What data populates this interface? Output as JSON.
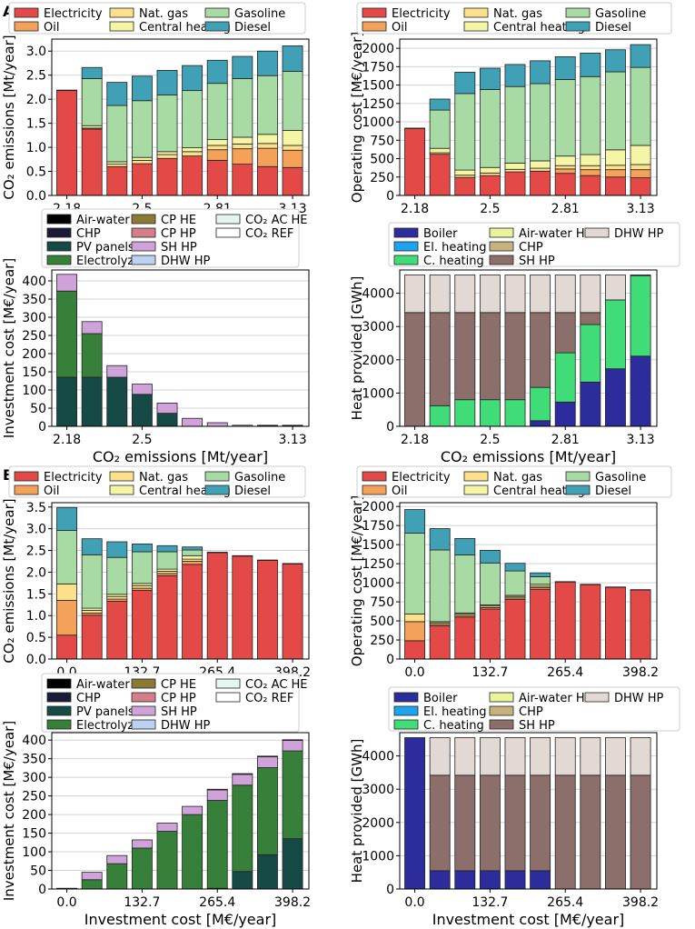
{
  "panel_labels": [
    "A",
    "B"
  ],
  "legends": {
    "emission": [
      "Electricity",
      "Oil",
      "Nat. gas",
      "Central heating",
      "Gasoline",
      "Diesel"
    ],
    "investment": [
      "Air-water HP",
      "CHP",
      "PV panels",
      "Electrolyzer",
      "CP HE",
      "CP HP",
      "SH HP",
      "DHW HP",
      "CO₂ AC HE",
      "CO₂ REF"
    ],
    "heat": [
      "Boiler",
      "El. heating",
      "C. heating",
      "Air-water HP",
      "CHP",
      "SH HP",
      "DHW HP"
    ]
  },
  "colors": {
    "Electricity": "#e34a47",
    "Oil": "#f4a259",
    "Nat. gas": "#fde08b",
    "Central heating": "#f5f5a6",
    "Gasoline": "#a7dba3",
    "Diesel": "#3fa0b6",
    "Air-water HP": "#000000",
    "CHP": "#1b1b36",
    "PV panels": "#164a46",
    "Electrolyzer": "#36803a",
    "CP HE": "#8b7a35",
    "CP HP": "#d47e8a",
    "SH HP": "#cfa3da",
    "DHW HP": "#bdd2f2",
    "CO₂ AC HE": "#e5f5ef",
    "CO₂ REF": "#ffffff",
    "Boiler": "#2c2c9c",
    "El. heating": "#1ea4ee",
    "C. heating": "#3fdc78",
    "HP Air-water HP": "#eaf59b",
    "HP CHP": "#c7b17e",
    "HP SH HP": "#8c6f6a",
    "HP DHW HP": "#e2d8d4"
  },
  "chart_data": [
    {
      "id": "A-emissions",
      "type": "bar",
      "stacked": true,
      "ylabel": "CO₂ emissions [Mt/year]",
      "xlabel": "",
      "ylim": [
        0,
        3.25
      ],
      "yticks": [
        "0.0",
        "0.5",
        "1.0",
        "1.5",
        "2.0",
        "2.5",
        "3.0"
      ],
      "ytick_values": [
        0,
        0.5,
        1,
        1.5,
        2,
        2.5,
        3
      ],
      "xtick_labels": [
        "2.18",
        "2.5",
        "2.81",
        "3.13"
      ],
      "xtick_positions": [
        0,
        3,
        6,
        9
      ],
      "series": [
        {
          "name": "Electricity",
          "values": [
            2.18,
            1.38,
            0.6,
            0.66,
            0.77,
            0.82,
            0.73,
            0.65,
            0.6,
            0.58
          ]
        },
        {
          "name": "Oil",
          "values": [
            0,
            0,
            0,
            0,
            0,
            0,
            0.22,
            0.32,
            0.38,
            0.36
          ]
        },
        {
          "name": "Nat. gas",
          "values": [
            0.01,
            0.02,
            0.05,
            0.07,
            0.08,
            0.09,
            0.09,
            0.1,
            0.1,
            0.1
          ]
        },
        {
          "name": "Central heating",
          "values": [
            0,
            0.05,
            0.05,
            0.06,
            0.06,
            0.08,
            0.12,
            0.14,
            0.19,
            0.31
          ]
        },
        {
          "name": "Gasoline",
          "values": [
            0,
            0.98,
            1.17,
            1.18,
            1.18,
            1.19,
            1.17,
            1.22,
            1.22,
            1.23
          ]
        },
        {
          "name": "Diesel",
          "values": [
            0,
            0.23,
            0.48,
            0.51,
            0.51,
            0.52,
            0.48,
            0.46,
            0.51,
            0.53
          ]
        }
      ]
    },
    {
      "id": "A-operating",
      "type": "bar",
      "stacked": true,
      "ylabel": "Operating cost [M€/year]",
      "xlabel": "",
      "ylim": [
        0,
        2125
      ],
      "yticks": [
        "0",
        "250",
        "500",
        "750",
        "1000",
        "1250",
        "1500",
        "1750",
        "2000"
      ],
      "ytick_values": [
        0,
        250,
        500,
        750,
        1000,
        1250,
        1500,
        1750,
        2000
      ],
      "xtick_labels": [
        "2.18",
        "2.5",
        "2.81",
        "3.13"
      ],
      "xtick_positions": [
        0,
        3,
        6,
        9
      ],
      "series": [
        {
          "name": "Electricity",
          "values": [
            910,
            560,
            245,
            270,
            320,
            330,
            300,
            270,
            250,
            240
          ]
        },
        {
          "name": "Oil",
          "values": [
            0,
            0,
            0,
            0,
            0,
            0,
            60,
            80,
            100,
            110
          ]
        },
        {
          "name": "Nat. gas",
          "values": [
            5,
            20,
            30,
            35,
            35,
            40,
            45,
            55,
            60,
            70
          ]
        },
        {
          "name": "Central heating",
          "values": [
            0,
            60,
            70,
            75,
            85,
            100,
            130,
            150,
            210,
            260
          ]
        },
        {
          "name": "Gasoline",
          "values": [
            0,
            520,
            1040,
            1060,
            1040,
            1050,
            1040,
            1060,
            1060,
            1060
          ]
        },
        {
          "name": "Diesel",
          "values": [
            0,
            150,
            290,
            290,
            300,
            310,
            310,
            320,
            300,
            310
          ]
        }
      ]
    },
    {
      "id": "A-investment",
      "type": "bar",
      "stacked": true,
      "ylabel": "Investment cost [M€/year]",
      "xlabel": "CO₂ emissions [Mt/year]",
      "ylim": [
        0,
        430
      ],
      "yticks": [
        "0",
        "50",
        "100",
        "150",
        "200",
        "250",
        "300",
        "350",
        "400"
      ],
      "ytick_values": [
        0,
        50,
        100,
        150,
        200,
        250,
        300,
        350,
        400
      ],
      "xtick_labels": [
        "2.18",
        "2.5",
        "3.13"
      ],
      "xtick_positions": [
        0,
        3,
        9
      ],
      "series": [
        {
          "name": "PV panels",
          "values": [
            135,
            135,
            135,
            88,
            36,
            0,
            0,
            0,
            0,
            0
          ]
        },
        {
          "name": "Electrolyzer",
          "values": [
            237,
            120,
            0,
            0,
            0,
            0,
            0,
            0,
            0,
            0
          ]
        },
        {
          "name": "SH HP",
          "values": [
            46,
            33,
            32,
            28,
            28,
            22,
            10,
            3,
            2,
            2
          ]
        },
        {
          "name": "CO₂ REF",
          "values": [
            0,
            0,
            0,
            0,
            0,
            0,
            0,
            0,
            1,
            1
          ]
        }
      ]
    },
    {
      "id": "A-heat",
      "type": "bar",
      "stacked": true,
      "ylabel": "Heat provided [GWh]",
      "xlabel": "CO₂ emissions [Mt/year]",
      "ylim": [
        0,
        4700
      ],
      "yticks": [
        "0",
        "1000",
        "2000",
        "3000",
        "4000"
      ],
      "ytick_values": [
        0,
        1000,
        2000,
        3000,
        4000
      ],
      "xtick_labels": [
        "2.18",
        "2.5",
        "2.81",
        "3.13"
      ],
      "xtick_positions": [
        0,
        3,
        6,
        9
      ],
      "series": [
        {
          "name": "Boiler",
          "values": [
            0,
            0,
            0,
            0,
            0,
            170,
            730,
            1330,
            1730,
            2110
          ]
        },
        {
          "name": "C. heating",
          "values": [
            0,
            620,
            800,
            800,
            800,
            1000,
            1480,
            1730,
            2070,
            2420
          ]
        },
        {
          "name": "SH HP",
          "values": [
            3420,
            2800,
            2620,
            2620,
            2620,
            2250,
            1210,
            360,
            0,
            0
          ]
        },
        {
          "name": "DHW HP",
          "values": [
            1130,
            1130,
            1130,
            1130,
            1130,
            1130,
            1130,
            1130,
            750,
            20
          ]
        }
      ]
    },
    {
      "id": "B-emissions",
      "type": "bar",
      "stacked": true,
      "ylabel": "CO₂ emissions [Mt/year]",
      "xlabel": "",
      "ylim": [
        0,
        3.6
      ],
      "yticks": [
        "0.0",
        "0.5",
        "1.0",
        "1.5",
        "2.0",
        "2.5",
        "3.0",
        "3.5"
      ],
      "ytick_values": [
        0,
        0.5,
        1,
        1.5,
        2,
        2.5,
        3,
        3.5
      ],
      "xtick_labels": [
        "0.0",
        "132.7",
        "265.4",
        "398.2"
      ],
      "xtick_positions": [
        0,
        3,
        6,
        9
      ],
      "series": [
        {
          "name": "Electricity",
          "values": [
            0.55,
            1.01,
            1.33,
            1.58,
            1.92,
            2.18,
            2.45,
            2.37,
            2.27,
            2.19
          ]
        },
        {
          "name": "Oil",
          "values": [
            0.8,
            0.05,
            0.05,
            0.05,
            0.05,
            0.07,
            0,
            0,
            0,
            0
          ]
        },
        {
          "name": "Nat. gas",
          "values": [
            0.38,
            0.06,
            0.06,
            0.06,
            0.05,
            0.05,
            0.01,
            0.01,
            0.01,
            0.01
          ]
        },
        {
          "name": "Central heating",
          "values": [
            0,
            0.05,
            0.05,
            0.05,
            0.05,
            0.08,
            0,
            0,
            0,
            0
          ]
        },
        {
          "name": "Gasoline",
          "values": [
            1.23,
            1.23,
            0.85,
            0.73,
            0.4,
            0.13,
            0,
            0,
            0,
            0
          ]
        },
        {
          "name": "Diesel",
          "values": [
            0.53,
            0.37,
            0.36,
            0.18,
            0.14,
            0.07,
            0,
            0,
            0,
            0
          ]
        }
      ]
    },
    {
      "id": "B-operating",
      "type": "bar",
      "stacked": true,
      "ylabel": "Operating cost [M€/year]",
      "xlabel": "",
      "ylim": [
        0,
        2050
      ],
      "yticks": [
        "0",
        "250",
        "500",
        "750",
        "1000",
        "1250",
        "1500",
        "1750",
        "2000"
      ],
      "ytick_values": [
        0,
        250,
        500,
        750,
        1000,
        1250,
        1500,
        1750,
        2000
      ],
      "xtick_labels": [
        "0.0",
        "132.7",
        "265.4",
        "398.2"
      ],
      "xtick_positions": [
        0,
        3,
        6,
        9
      ],
      "series": [
        {
          "name": "Electricity",
          "values": [
            240,
            435,
            550,
            655,
            780,
            915,
            1010,
            975,
            940,
            905
          ]
        },
        {
          "name": "Oil",
          "values": [
            250,
            20,
            20,
            20,
            20,
            20,
            0,
            0,
            0,
            0
          ]
        },
        {
          "name": "Nat. gas",
          "values": [
            100,
            20,
            20,
            20,
            20,
            20,
            5,
            5,
            5,
            5
          ]
        },
        {
          "name": "Central heating",
          "values": [
            0,
            15,
            15,
            15,
            15,
            25,
            0,
            0,
            0,
            0
          ]
        },
        {
          "name": "Gasoline",
          "values": [
            1060,
            940,
            760,
            550,
            320,
            100,
            0,
            0,
            0,
            0
          ]
        },
        {
          "name": "Diesel",
          "values": [
            310,
            280,
            215,
            165,
            100,
            50,
            0,
            0,
            0,
            0
          ]
        }
      ]
    },
    {
      "id": "B-investment",
      "type": "bar",
      "stacked": true,
      "ylabel": "Investment cost [M€/year]",
      "xlabel": "Investment cost [M€/year]",
      "ylim": [
        0,
        420
      ],
      "yticks": [
        "0",
        "50",
        "100",
        "150",
        "200",
        "250",
        "300",
        "350",
        "400"
      ],
      "ytick_values": [
        0,
        50,
        100,
        150,
        200,
        250,
        300,
        350,
        400
      ],
      "xtick_labels": [
        "0.0",
        "132.7",
        "265.4",
        "398.2"
      ],
      "xtick_positions": [
        0,
        3,
        6,
        9
      ],
      "series": [
        {
          "name": "PV panels",
          "values": [
            0,
            0,
            0,
            0,
            0,
            0,
            2,
            47,
            92,
            135
          ]
        },
        {
          "name": "Electrolyzer",
          "values": [
            2,
            25,
            68,
            110,
            155,
            200,
            236,
            232,
            234,
            236
          ]
        },
        {
          "name": "SH HP",
          "values": [
            0,
            20,
            22,
            22,
            22,
            22,
            28,
            29,
            29,
            28
          ]
        },
        {
          "name": "CO₂ REF",
          "values": [
            0,
            0,
            0,
            0,
            0,
            0,
            2,
            2,
            2,
            2
          ]
        }
      ]
    },
    {
      "id": "B-heat",
      "type": "bar",
      "stacked": true,
      "ylabel": "Heat provided [GWh]",
      "xlabel": "Investment cost [M€/year]",
      "ylim": [
        0,
        4700
      ],
      "yticks": [
        "0",
        "1000",
        "2000",
        "3000",
        "4000"
      ],
      "ytick_values": [
        0,
        1000,
        2000,
        3000,
        4000
      ],
      "xtick_labels": [
        "0.0",
        "132.7",
        "265.4",
        "398.2"
      ],
      "xtick_positions": [
        0,
        3,
        6,
        9
      ],
      "series": [
        {
          "name": "Boiler",
          "values": [
            4550,
            550,
            550,
            550,
            550,
            550,
            0,
            0,
            0,
            0
          ]
        },
        {
          "name": "SH HP",
          "values": [
            0,
            2870,
            2870,
            2870,
            2870,
            2870,
            3420,
            3420,
            3420,
            3420
          ]
        },
        {
          "name": "DHW HP",
          "values": [
            0,
            1130,
            1130,
            1130,
            1130,
            1130,
            1130,
            1130,
            1130,
            1130
          ]
        }
      ]
    }
  ]
}
